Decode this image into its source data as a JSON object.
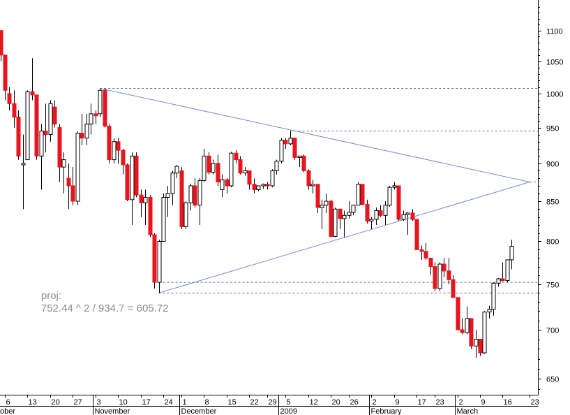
{
  "chart_data": {
    "type": "candlestick",
    "title": "",
    "y_scale": "log",
    "ylim": [
      630,
      1140
    ],
    "grid": false,
    "colors": {
      "up_body": "#ffffff",
      "down_body": "#e8141e",
      "wick": "#000000",
      "trendline": "#6f8fcf",
      "level_line": "#5a6e9a",
      "annotation": "#8c8c8c",
      "axis": "#000000"
    },
    "y_ticks": [
      650,
      700,
      750,
      800,
      850,
      900,
      950,
      1000,
      1050,
      1100
    ],
    "x_day_ticks": [
      {
        "date": "2008-10-06",
        "label": "6"
      },
      {
        "date": "2008-10-13",
        "label": "13"
      },
      {
        "date": "2008-10-20",
        "label": "20"
      },
      {
        "date": "2008-10-27",
        "label": "27"
      },
      {
        "date": "2008-11-03",
        "label": "3"
      },
      {
        "date": "2008-11-10",
        "label": "10"
      },
      {
        "date": "2008-11-17",
        "label": "17"
      },
      {
        "date": "2008-11-24",
        "label": "24"
      },
      {
        "date": "2008-12-01",
        "label": "1"
      },
      {
        "date": "2008-12-08",
        "label": "8"
      },
      {
        "date": "2008-12-15",
        "label": "15"
      },
      {
        "date": "2008-12-22",
        "label": "22"
      },
      {
        "date": "2008-12-29",
        "label": "29"
      },
      {
        "date": "2009-01-05",
        "label": "5"
      },
      {
        "date": "2009-01-12",
        "label": "12"
      },
      {
        "date": "2009-01-20",
        "label": "20"
      },
      {
        "date": "2009-01-26",
        "label": "26"
      },
      {
        "date": "2009-02-02",
        "label": "2"
      },
      {
        "date": "2009-02-09",
        "label": "9"
      },
      {
        "date": "2009-02-17",
        "label": "17"
      },
      {
        "date": "2009-02-23",
        "label": "23"
      },
      {
        "date": "2009-03-02",
        "label": "2"
      },
      {
        "date": "2009-03-09",
        "label": "9"
      },
      {
        "date": "2009-03-16",
        "label": "16"
      },
      {
        "date": "2009-03-23",
        "label": "23"
      }
    ],
    "x_month_labels": [
      {
        "date": "2008-10-01",
        "label": "ober"
      },
      {
        "date": "2008-11-03",
        "label": "November"
      },
      {
        "date": "2008-12-01",
        "label": "December"
      },
      {
        "date": "2009-01-02",
        "label": "2009"
      },
      {
        "date": "2009-02-02",
        "label": "February"
      },
      {
        "date": "2009-03-02",
        "label": "March"
      }
    ],
    "candles": [
      [
        "2008-10-03",
        1100,
        1100,
        1050,
        1060
      ],
      [
        "2008-10-06",
        1060,
        1060,
        990,
        1005
      ],
      [
        "2008-10-07",
        1000,
        1010,
        975,
        985
      ],
      [
        "2008-10-08",
        985,
        1005,
        950,
        965
      ],
      [
        "2008-10-09",
        965,
        975,
        905,
        910
      ],
      [
        "2008-10-10",
        898,
        940,
        840,
        900
      ],
      [
        "2008-10-13",
        905,
        1005,
        905,
        1003
      ],
      [
        "2008-10-14",
        1003,
        1055,
        990,
        998
      ],
      [
        "2008-10-15",
        998,
        998,
        905,
        910
      ],
      [
        "2008-10-16",
        910,
        955,
        865,
        945
      ],
      [
        "2008-10-17",
        945,
        985,
        915,
        940
      ],
      [
        "2008-10-20",
        940,
        990,
        930,
        985
      ],
      [
        "2008-10-21",
        980,
        990,
        950,
        955
      ],
      [
        "2008-10-22",
        950,
        955,
        875,
        895
      ],
      [
        "2008-10-23",
        895,
        915,
        860,
        905
      ],
      [
        "2008-10-24",
        880,
        900,
        840,
        870
      ],
      [
        "2008-10-27",
        870,
        895,
        845,
        850
      ],
      [
        "2008-10-28",
        850,
        945,
        845,
        942
      ],
      [
        "2008-10-29",
        942,
        970,
        925,
        935
      ],
      [
        "2008-10-30",
        935,
        970,
        925,
        955
      ],
      [
        "2008-10-31",
        955,
        985,
        940,
        970
      ],
      [
        "2008-11-03",
        970,
        975,
        955,
        967
      ],
      [
        "2008-11-04",
        970,
        1008,
        965,
        1005
      ],
      [
        "2008-11-05",
        1005,
        1008,
        950,
        952
      ],
      [
        "2008-11-06",
        952,
        955,
        900,
        905
      ],
      [
        "2008-11-07",
        905,
        935,
        900,
        930
      ],
      [
        "2008-11-10",
        930,
        935,
        900,
        918
      ],
      [
        "2008-11-11",
        918,
        920,
        885,
        898
      ],
      [
        "2008-11-12",
        898,
        900,
        850,
        852
      ],
      [
        "2008-11-13",
        852,
        915,
        820,
        910
      ],
      [
        "2008-11-14",
        910,
        915,
        855,
        858
      ],
      [
        "2008-11-17",
        858,
        865,
        830,
        848
      ],
      [
        "2008-11-18",
        848,
        865,
        820,
        855
      ],
      [
        "2008-11-19",
        855,
        858,
        805,
        808
      ],
      [
        "2008-11-20",
        808,
        810,
        745,
        752
      ],
      [
        "2008-11-21",
        752,
        802,
        740,
        800
      ],
      [
        "2008-11-24",
        800,
        860,
        800,
        855
      ],
      [
        "2008-11-25",
        855,
        870,
        830,
        860
      ],
      [
        "2008-11-26",
        860,
        890,
        845,
        887
      ],
      [
        "2008-11-28",
        887,
        898,
        880,
        896
      ],
      [
        "2008-12-01",
        890,
        895,
        815,
        818
      ],
      [
        "2008-12-02",
        818,
        850,
        815,
        848
      ],
      [
        "2008-12-03",
        848,
        873,
        838,
        870
      ],
      [
        "2008-12-04",
        870,
        880,
        842,
        845
      ],
      [
        "2008-12-05",
        845,
        880,
        820,
        877
      ],
      [
        "2008-12-08",
        877,
        920,
        875,
        910
      ],
      [
        "2008-12-09",
        910,
        915,
        885,
        888
      ],
      [
        "2008-12-10",
        888,
        905,
        885,
        900
      ],
      [
        "2008-12-11",
        900,
        912,
        870,
        875
      ],
      [
        "2008-12-12",
        865,
        885,
        855,
        878
      ],
      [
        "2008-12-15",
        878,
        880,
        860,
        870
      ],
      [
        "2008-12-16",
        870,
        916,
        868,
        914
      ],
      [
        "2008-12-17",
        914,
        918,
        900,
        905
      ],
      [
        "2008-12-18",
        905,
        910,
        885,
        887
      ],
      [
        "2008-12-19",
        887,
        895,
        883,
        890
      ],
      [
        "2008-12-22",
        890,
        890,
        865,
        872
      ],
      [
        "2008-12-23",
        872,
        880,
        860,
        865
      ],
      [
        "2008-12-24",
        865,
        870,
        863,
        870
      ],
      [
        "2008-12-26",
        870,
        873,
        866,
        872
      ],
      [
        "2008-12-29",
        872,
        875,
        865,
        870
      ],
      [
        "2008-12-30",
        870,
        892,
        868,
        890
      ],
      [
        "2008-12-31",
        890,
        905,
        885,
        903
      ],
      [
        "2009-01-02",
        903,
        935,
        900,
        932
      ],
      [
        "2009-01-05",
        932,
        935,
        920,
        927
      ],
      [
        "2009-01-06",
        927,
        945,
        925,
        935
      ],
      [
        "2009-01-07",
        935,
        935,
        905,
        908
      ],
      [
        "2009-01-08",
        908,
        910,
        895,
        910
      ],
      [
        "2009-01-09",
        910,
        912,
        888,
        890
      ],
      [
        "2009-01-12",
        890,
        892,
        865,
        870
      ],
      [
        "2009-01-13",
        870,
        878,
        860,
        872
      ],
      [
        "2009-01-14",
        872,
        872,
        835,
        842
      ],
      [
        "2009-01-15",
        842,
        852,
        815,
        845
      ],
      [
        "2009-01-16",
        845,
        860,
        835,
        850
      ],
      [
        "2009-01-20",
        850,
        852,
        805,
        806
      ],
      [
        "2009-01-21",
        806,
        842,
        805,
        840
      ],
      [
        "2009-01-22",
        840,
        840,
        815,
        828
      ],
      [
        "2009-01-23",
        828,
        838,
        805,
        832
      ],
      [
        "2009-01-26",
        832,
        850,
        828,
        836
      ],
      [
        "2009-01-27",
        836,
        845,
        832,
        845
      ],
      [
        "2009-01-28",
        845,
        875,
        845,
        872
      ],
      [
        "2009-01-29",
        872,
        872,
        845,
        846
      ],
      [
        "2009-01-30",
        846,
        852,
        822,
        825
      ],
      [
        "2009-02-02",
        825,
        830,
        815,
        827
      ],
      [
        "2009-02-03",
        827,
        842,
        820,
        838
      ],
      [
        "2009-02-04",
        838,
        845,
        830,
        832
      ],
      [
        "2009-02-05",
        832,
        850,
        820,
        845
      ],
      [
        "2009-02-06",
        845,
        870,
        843,
        868
      ],
      [
        "2009-02-09",
        868,
        875,
        865,
        870
      ],
      [
        "2009-02-10",
        870,
        870,
        825,
        827
      ],
      [
        "2009-02-11",
        827,
        838,
        825,
        833
      ],
      [
        "2009-02-12",
        833,
        836,
        808,
        835
      ],
      [
        "2009-02-13",
        835,
        840,
        825,
        827
      ],
      [
        "2009-02-17",
        827,
        827,
        790,
        790
      ],
      [
        "2009-02-18",
        790,
        795,
        778,
        788
      ],
      [
        "2009-02-19",
        788,
        798,
        778,
        780
      ],
      [
        "2009-02-20",
        780,
        780,
        760,
        770
      ],
      [
        "2009-02-23",
        770,
        775,
        742,
        745
      ],
      [
        "2009-02-24",
        745,
        775,
        742,
        773
      ],
      [
        "2009-02-25",
        773,
        780,
        758,
        765
      ],
      [
        "2009-02-26",
        765,
        780,
        750,
        755
      ],
      [
        "2009-02-27",
        755,
        760,
        735,
        735
      ],
      [
        "2009-03-02",
        735,
        735,
        700,
        700
      ],
      [
        "2009-03-03",
        700,
        712,
        695,
        697
      ],
      [
        "2009-03-04",
        697,
        725,
        695,
        712
      ],
      [
        "2009-03-05",
        712,
        712,
        680,
        683
      ],
      [
        "2009-03-06",
        683,
        700,
        671,
        690
      ],
      [
        "2009-03-09",
        690,
        690,
        673,
        676
      ],
      [
        "2009-03-10",
        676,
        720,
        675,
        719
      ],
      [
        "2009-03-11",
        719,
        726,
        712,
        722
      ],
      [
        "2009-03-12",
        722,
        752,
        715,
        751
      ],
      [
        "2009-03-13",
        751,
        757,
        747,
        756
      ],
      [
        "2009-03-16",
        756,
        775,
        753,
        754
      ],
      [
        "2009-03-17",
        754,
        778,
        752,
        778
      ],
      [
        "2009-03-18",
        778,
        802,
        767,
        794
      ]
    ],
    "lines": [
      {
        "kind": "trendline",
        "from": [
          "2008-11-04",
          1008
        ],
        "to": [
          "2009-03-24",
          875
        ]
      },
      {
        "kind": "trendline",
        "from": [
          "2008-11-21",
          740
        ],
        "to": [
          "2009-03-24",
          875
        ]
      },
      {
        "kind": "level",
        "from": [
          "2008-11-04",
          1008
        ],
        "to_edge": true
      },
      {
        "kind": "level",
        "from": [
          "2009-01-06",
          945
        ],
        "to_edge": true
      },
      {
        "kind": "level",
        "from": [
          "2009-03-24",
          875
        ],
        "to_edge": true
      },
      {
        "kind": "level",
        "from": [
          "2008-11-21",
          752
        ],
        "to_edge": true
      },
      {
        "kind": "level",
        "from": [
          "2008-11-21",
          740
        ],
        "to_edge": true
      }
    ],
    "annotation": {
      "line1": "proj:",
      "line2": "752.44 ^ 2 / 934.7 = 605.72",
      "anchor_date": "2008-10-16",
      "anchor_value": 718
    }
  }
}
